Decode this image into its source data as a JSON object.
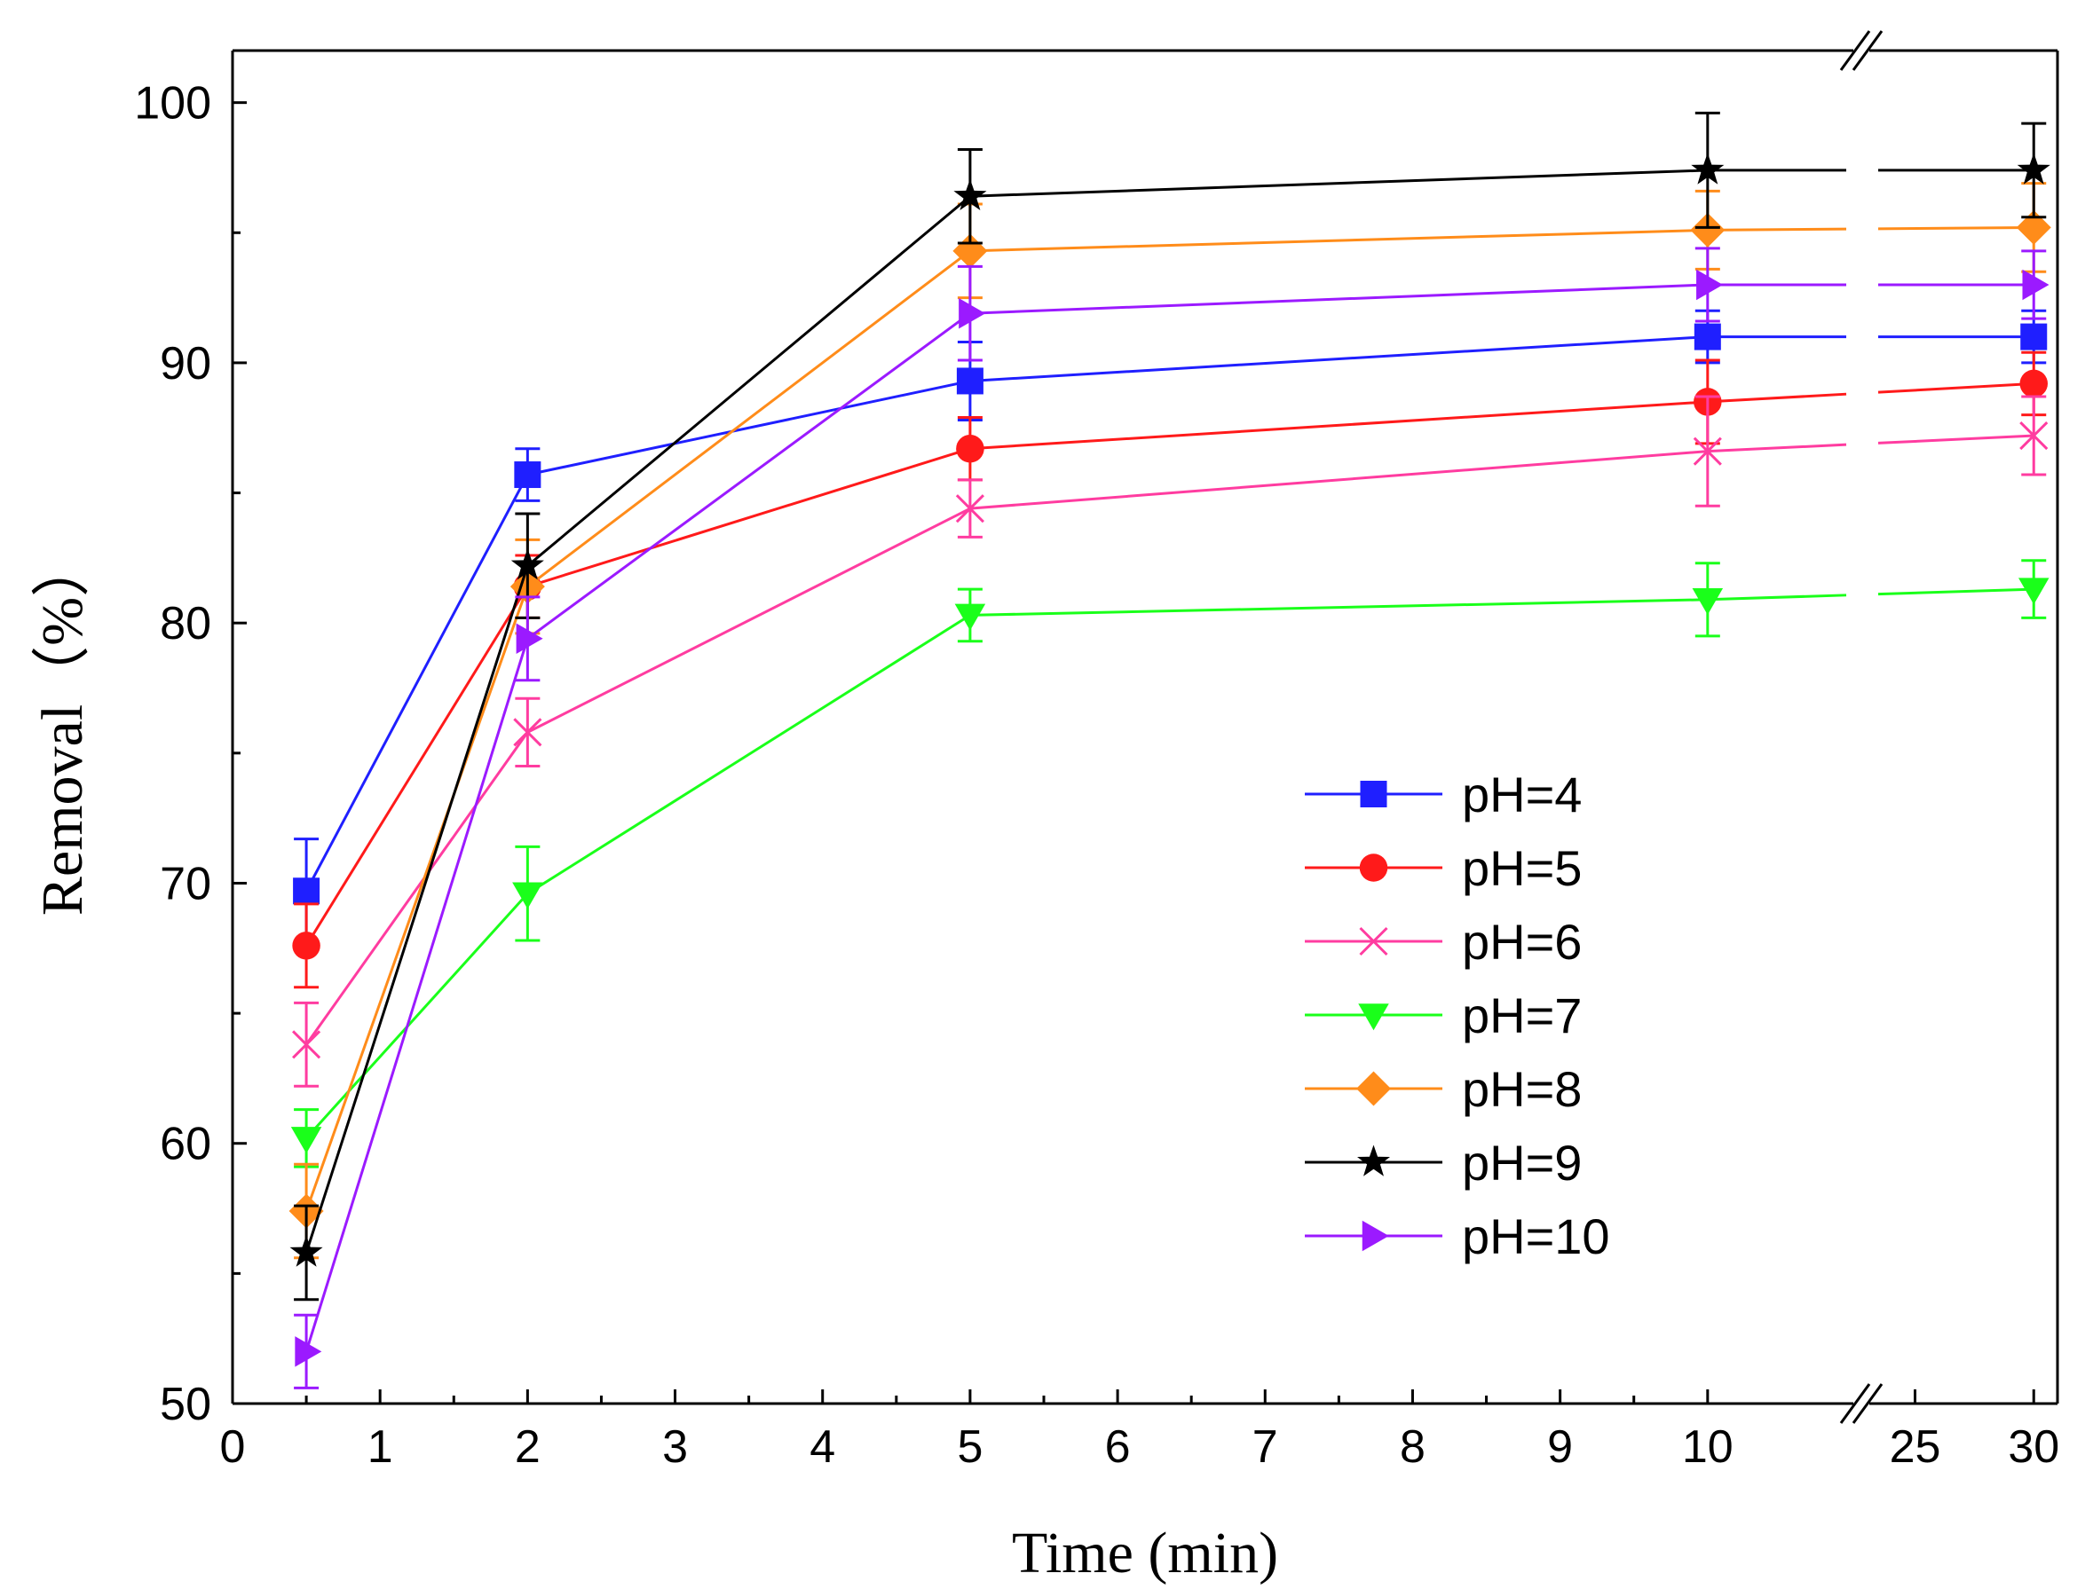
{
  "chart_data": {
    "type": "line",
    "title": "",
    "xlabel": "Time (min)",
    "ylabel": "Removal（%）",
    "x_axis": {
      "segments": [
        {
          "range": [
            0,
            11
          ],
          "ticks": [
            0,
            1,
            2,
            3,
            4,
            5,
            6,
            7,
            8,
            9,
            10
          ]
        },
        {
          "range": [
            23,
            31
          ],
          "ticks": [
            25,
            30
          ]
        }
      ],
      "broken": true
    },
    "ylim": [
      50,
      102
    ],
    "yticks": [
      50,
      60,
      70,
      80,
      90,
      100
    ],
    "grid": false,
    "legend_position": "center-right",
    "x": [
      0.5,
      2,
      5,
      10,
      30
    ],
    "series": [
      {
        "name": "pH=4",
        "color": "#1f1fff",
        "marker": "square",
        "values": [
          69.7,
          85.7,
          89.3,
          91.0,
          91.0
        ],
        "errors": [
          2.0,
          1.0,
          1.5,
          1.0,
          1.0
        ]
      },
      {
        "name": "pH=5",
        "color": "#ff1a1a",
        "marker": "circle",
        "values": [
          67.6,
          81.4,
          86.7,
          88.5,
          89.2
        ],
        "errors": [
          1.6,
          1.2,
          1.2,
          1.6,
          1.2
        ]
      },
      {
        "name": "pH=6",
        "color": "#ff3ca0",
        "marker": "x",
        "values": [
          63.8,
          75.8,
          84.4,
          86.6,
          87.2
        ],
        "errors": [
          1.6,
          1.3,
          1.1,
          2.1,
          1.5
        ]
      },
      {
        "name": "pH=7",
        "color": "#1aff1a",
        "marker": "triangle-down",
        "values": [
          60.2,
          69.6,
          80.3,
          80.9,
          81.3
        ],
        "errors": [
          1.1,
          1.8,
          1.0,
          1.4,
          1.1
        ]
      },
      {
        "name": "pH=8",
        "color": "#ff8c1a",
        "marker": "diamond",
        "values": [
          57.4,
          81.4,
          94.3,
          95.1,
          95.2
        ],
        "errors": [
          1.8,
          1.8,
          1.8,
          1.5,
          1.7
        ]
      },
      {
        "name": "pH=9",
        "color": "#000000",
        "marker": "star",
        "values": [
          55.8,
          82.2,
          96.4,
          97.4,
          97.4
        ],
        "errors": [
          1.8,
          2.0,
          1.8,
          2.2,
          1.8
        ]
      },
      {
        "name": "pH=10",
        "color": "#9b1aff",
        "marker": "triangle-right",
        "values": [
          52.0,
          79.4,
          91.9,
          93.0,
          93.0
        ],
        "errors": [
          1.4,
          1.6,
          1.8,
          1.4,
          1.3
        ]
      }
    ]
  }
}
